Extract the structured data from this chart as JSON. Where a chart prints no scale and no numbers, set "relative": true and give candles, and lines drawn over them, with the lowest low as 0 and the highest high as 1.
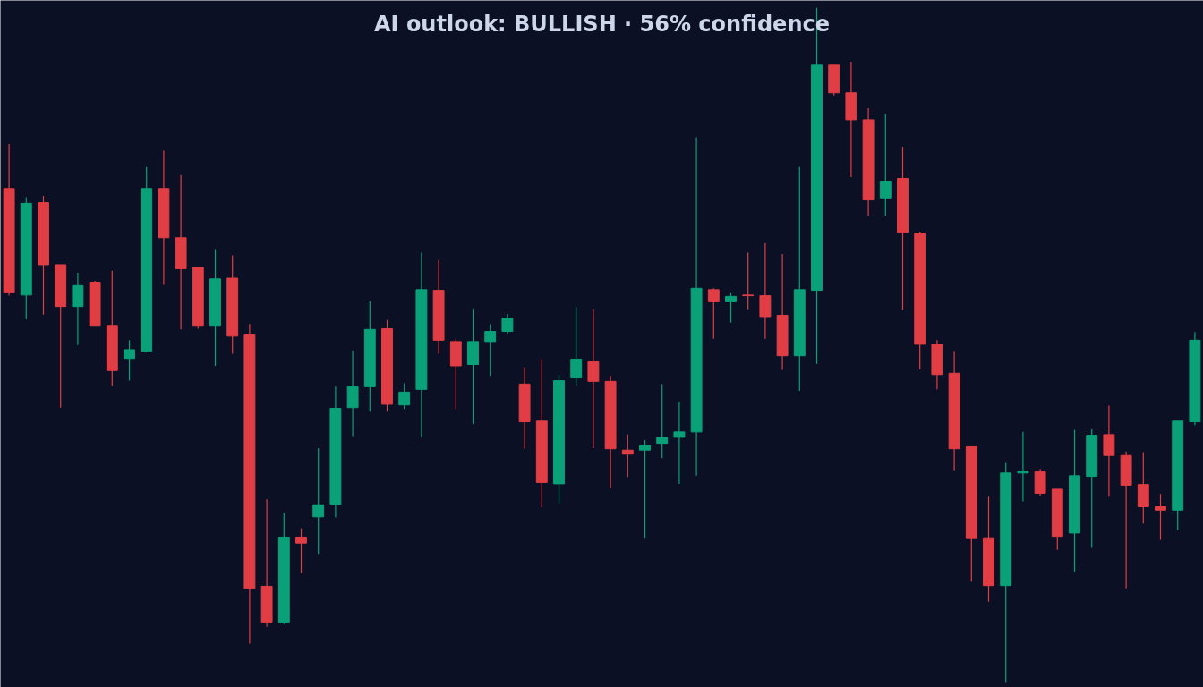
{
  "chart_data": {
    "type": "candlestick",
    "title": "AI outlook: BULLISH · 56% confidence",
    "relative": true,
    "grid": false,
    "categories": [
      null,
      null,
      null,
      null,
      null,
      null,
      null,
      null,
      null,
      null,
      null,
      null,
      null,
      null,
      null,
      null,
      null,
      null,
      null,
      null,
      null,
      null,
      null,
      null,
      null,
      null,
      null,
      null,
      null,
      null,
      null,
      null,
      null,
      null,
      null,
      null,
      null,
      null,
      null,
      null,
      null,
      null,
      null,
      null,
      null,
      null,
      null,
      null,
      null,
      null,
      null,
      null,
      null,
      null,
      null,
      null,
      null,
      null,
      null,
      null,
      null,
      null,
      null,
      null,
      null,
      null,
      null,
      null,
      null,
      null
    ],
    "ohlc": [
      [
        0.732,
        0.798,
        0.573,
        0.578
      ],
      [
        0.574,
        0.719,
        0.538,
        0.71
      ],
      [
        0.711,
        0.721,
        0.545,
        0.619
      ],
      [
        0.619,
        0.619,
        0.407,
        0.557
      ],
      [
        0.557,
        0.607,
        0.5,
        0.588
      ],
      [
        0.593,
        0.595,
        0.529,
        0.529
      ],
      [
        0.529,
        0.61,
        0.439,
        0.462
      ],
      [
        0.48,
        0.507,
        0.447,
        0.493
      ],
      [
        0.491,
        0.764,
        0.489,
        0.732
      ],
      [
        0.732,
        0.788,
        0.589,
        0.659
      ],
      [
        0.659,
        0.752,
        0.523,
        0.613
      ],
      [
        0.615,
        0.615,
        0.524,
        0.529
      ],
      [
        0.529,
        0.642,
        0.469,
        0.598
      ],
      [
        0.599,
        0.633,
        0.487,
        0.513
      ],
      [
        0.516,
        0.531,
        0.057,
        0.139
      ],
      [
        0.142,
        0.271,
        0.082,
        0.089
      ],
      [
        0.089,
        0.251,
        0.086,
        0.215
      ],
      [
        0.215,
        0.228,
        0.162,
        0.206
      ],
      [
        0.245,
        0.347,
        0.19,
        0.263
      ],
      [
        0.264,
        0.438,
        0.244,
        0.406
      ],
      [
        0.407,
        0.492,
        0.365,
        0.438
      ],
      [
        0.438,
        0.565,
        0.401,
        0.523
      ],
      [
        0.524,
        0.537,
        0.401,
        0.412
      ],
      [
        0.411,
        0.443,
        0.405,
        0.43
      ],
      [
        0.434,
        0.637,
        0.363,
        0.582
      ],
      [
        0.581,
        0.626,
        0.487,
        0.507
      ],
      [
        0.505,
        0.509,
        0.405,
        0.469
      ],
      [
        0.471,
        0.554,
        0.383,
        0.505
      ],
      [
        0.505,
        0.531,
        0.454,
        0.52
      ],
      [
        0.52,
        0.546,
        0.517,
        0.54
      ],
      [
        0.442,
        0.467,
        0.346,
        0.386
      ],
      [
        0.387,
        0.479,
        0.259,
        0.296
      ],
      [
        0.294,
        0.456,
        0.265,
        0.447
      ],
      [
        0.451,
        0.556,
        0.44,
        0.479
      ],
      [
        0.475,
        0.554,
        0.347,
        0.446
      ],
      [
        0.446,
        0.454,
        0.288,
        0.346
      ],
      [
        0.344,
        0.367,
        0.304,
        0.338
      ],
      [
        0.344,
        0.359,
        0.214,
        0.351
      ],
      [
        0.354,
        0.442,
        0.332,
        0.363
      ],
      [
        0.363,
        0.416,
        0.294,
        0.371
      ],
      [
        0.371,
        0.808,
        0.306,
        0.584
      ],
      [
        0.582,
        0.584,
        0.509,
        0.564
      ],
      [
        0.564,
        0.578,
        0.533,
        0.572
      ],
      [
        0.574,
        0.637,
        0.553,
        0.573
      ],
      [
        0.573,
        0.651,
        0.509,
        0.542
      ],
      [
        0.544,
        0.635,
        0.463,
        0.484
      ],
      [
        0.484,
        0.764,
        0.432,
        0.582
      ],
      [
        0.581,
        1.0,
        0.472,
        0.915
      ],
      [
        0.915,
        0.915,
        0.87,
        0.874
      ],
      [
        0.874,
        0.92,
        0.749,
        0.834
      ],
      [
        0.834,
        0.851,
        0.692,
        0.715
      ],
      [
        0.718,
        0.842,
        0.692,
        0.743
      ],
      [
        0.747,
        0.794,
        0.552,
        0.667
      ],
      [
        0.666,
        0.668,
        0.464,
        0.501
      ],
      [
        0.501,
        0.507,
        0.434,
        0.456
      ],
      [
        0.458,
        0.491,
        0.314,
        0.346
      ],
      [
        0.349,
        0.349,
        0.149,
        0.214
      ],
      [
        0.214,
        0.275,
        0.119,
        0.143
      ],
      [
        0.143,
        0.325,
        0.0,
        0.31
      ],
      [
        0.31,
        0.371,
        0.268,
        0.313
      ],
      [
        0.312,
        0.316,
        0.276,
        0.28
      ],
      [
        0.286,
        0.286,
        0.196,
        0.216
      ],
      [
        0.221,
        0.374,
        0.164,
        0.306
      ],
      [
        0.305,
        0.375,
        0.199,
        0.366
      ],
      [
        0.367,
        0.41,
        0.275,
        0.336
      ],
      [
        0.336,
        0.342,
        0.139,
        0.292
      ],
      [
        0.293,
        0.341,
        0.235,
        0.26
      ],
      [
        0.26,
        0.279,
        0.211,
        0.255
      ],
      [
        0.255,
        0.387,
        0.225,
        0.387
      ],
      [
        0.386,
        0.519,
        0.381,
        0.507
      ]
    ],
    "colors": [
      "#e03e44",
      "#0aa179",
      "#e03e44",
      "#e03e44",
      "#0aa179",
      "#e03e44",
      "#e03e44",
      "#0aa179",
      "#0aa179",
      "#e03e44",
      "#e03e44",
      "#e03e44",
      "#0aa179",
      "#e03e44",
      "#e03e44",
      "#e03e44",
      "#0aa179",
      "#e03e44",
      "#0aa179",
      "#0aa179",
      "#0aa179",
      "#0aa179",
      "#e03e44",
      "#0aa179",
      "#0aa179",
      "#e03e44",
      "#e03e44",
      "#0aa179",
      "#0aa179",
      "#0aa179",
      "#e03e44",
      "#e03e44",
      "#0aa179",
      "#0aa179",
      "#e03e44",
      "#e03e44",
      "#e03e44",
      "#0aa179",
      "#0aa179",
      "#0aa179",
      "#0aa179",
      "#e03e44",
      "#0aa179",
      "#e03e44",
      "#e03e44",
      "#e03e44",
      "#0aa179",
      "#0aa179",
      "#e03e44",
      "#e03e44",
      "#e03e44",
      "#0aa179",
      "#e03e44",
      "#e03e44",
      "#e03e44",
      "#e03e44",
      "#e03e44",
      "#e03e44",
      "#0aa179",
      "#0aa179",
      "#e03e44",
      "#e03e44",
      "#0aa179",
      "#0aa179",
      "#e03e44",
      "#e03e44",
      "#e03e44",
      "#e03e44",
      "#0aa179",
      "#0aa179"
    ]
  }
}
